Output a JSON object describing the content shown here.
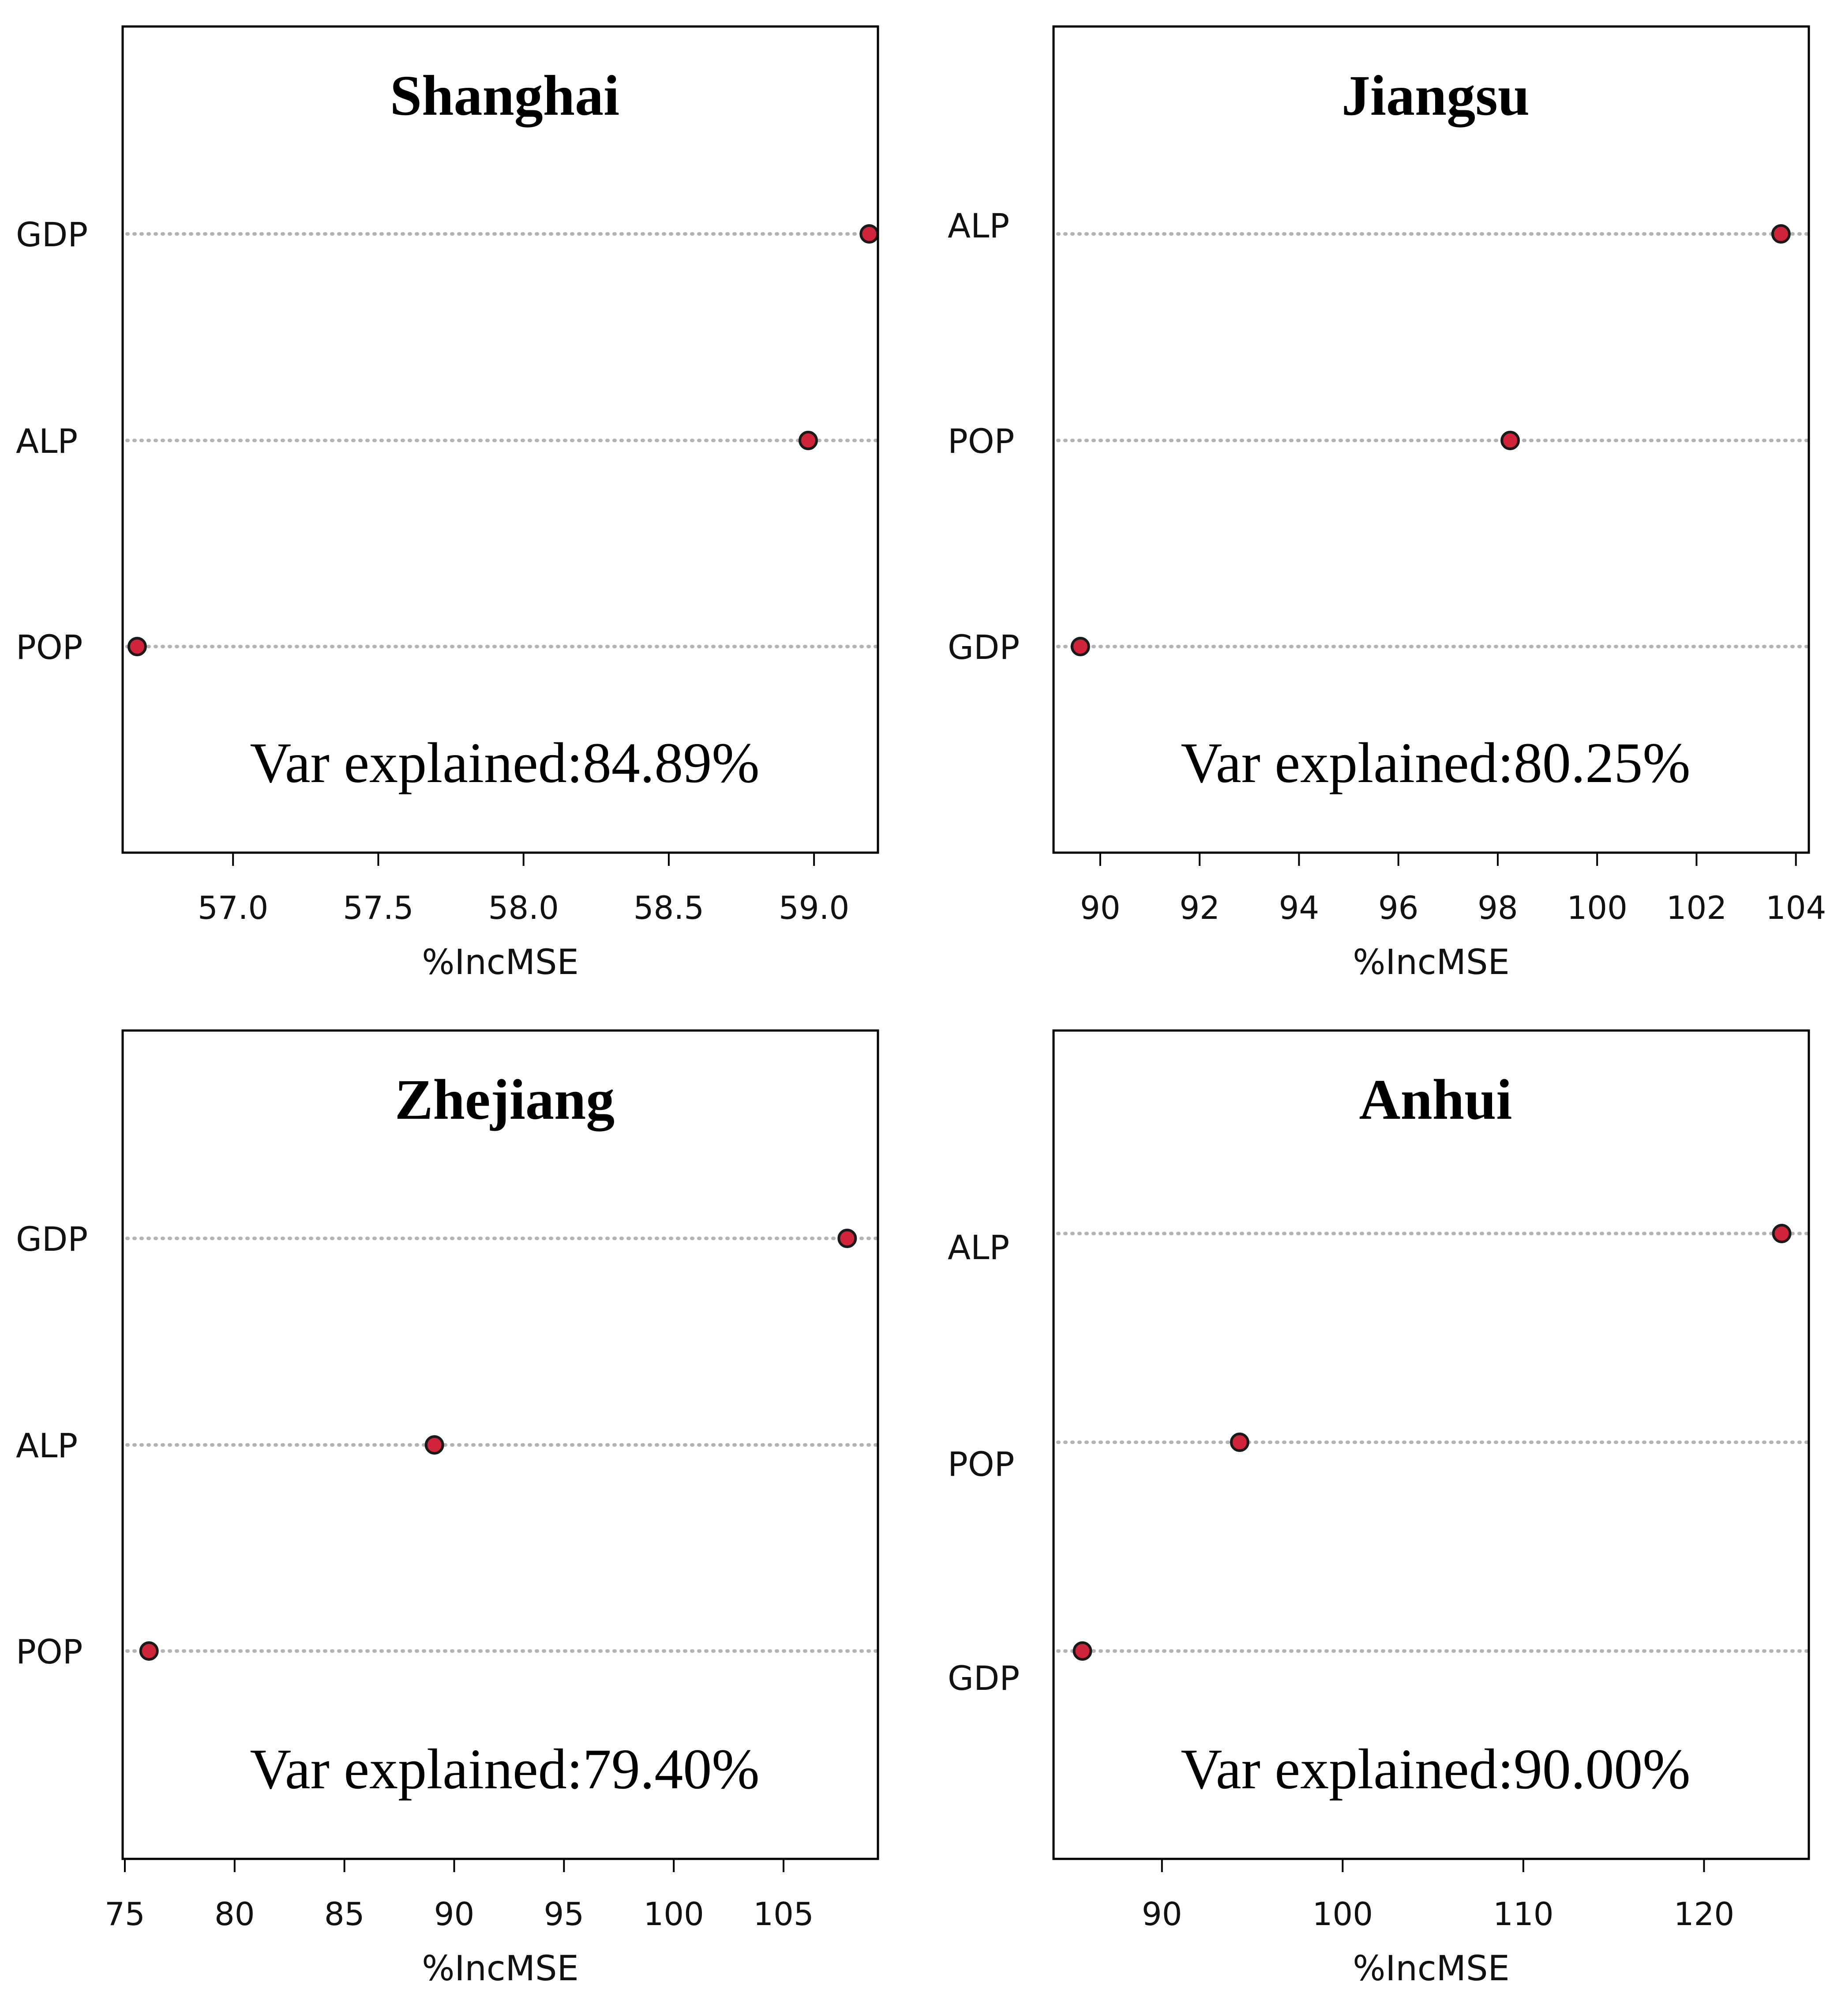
{
  "chart_data": [
    {
      "type": "dot",
      "title": "Shanghai",
      "xlabel": "%IncMSE",
      "note": "Var explained:84.89%",
      "xlim": [
        56.62,
        59.22
      ],
      "ticks": [
        "57.0",
        "57.5",
        "58.0",
        "58.5",
        "59.0"
      ],
      "categories": [
        "GDP",
        "ALP",
        "POP"
      ],
      "values": [
        59.19,
        58.98,
        56.67
      ]
    },
    {
      "type": "dot",
      "title": "Jiangsu",
      "xlabel": "%IncMSE",
      "note": "Var explained:80.25%",
      "xlim": [
        89.06,
        104.26
      ],
      "ticks": [
        "90",
        "92",
        "94",
        "96",
        "98",
        "100",
        "102",
        "104"
      ],
      "categories": [
        "ALP",
        "POP",
        "GDP"
      ],
      "values": [
        103.7,
        98.25,
        89.6
      ]
    },
    {
      "type": "dot",
      "title": "Zhejiang",
      "xlabel": "%IncMSE",
      "note": "Var explained:79.40%",
      "xlim": [
        74.9,
        109.3
      ],
      "ticks": [
        "75",
        "80",
        "85",
        "90",
        "95",
        "100",
        "105"
      ],
      "categories": [
        "GDP",
        "ALP",
        "POP"
      ],
      "values": [
        107.9,
        89.1,
        76.1
      ]
    },
    {
      "type": "dot",
      "title": "Anhui",
      "xlabel": "%IncMSE",
      "note": "Var explained:90.00%",
      "xlim": [
        84.0,
        125.8
      ],
      "ticks": [
        "90",
        "100",
        "110",
        "120"
      ],
      "categories": [
        "ALP",
        "POP",
        "GDP"
      ],
      "values": [
        124.3,
        94.3,
        85.6
      ]
    }
  ]
}
